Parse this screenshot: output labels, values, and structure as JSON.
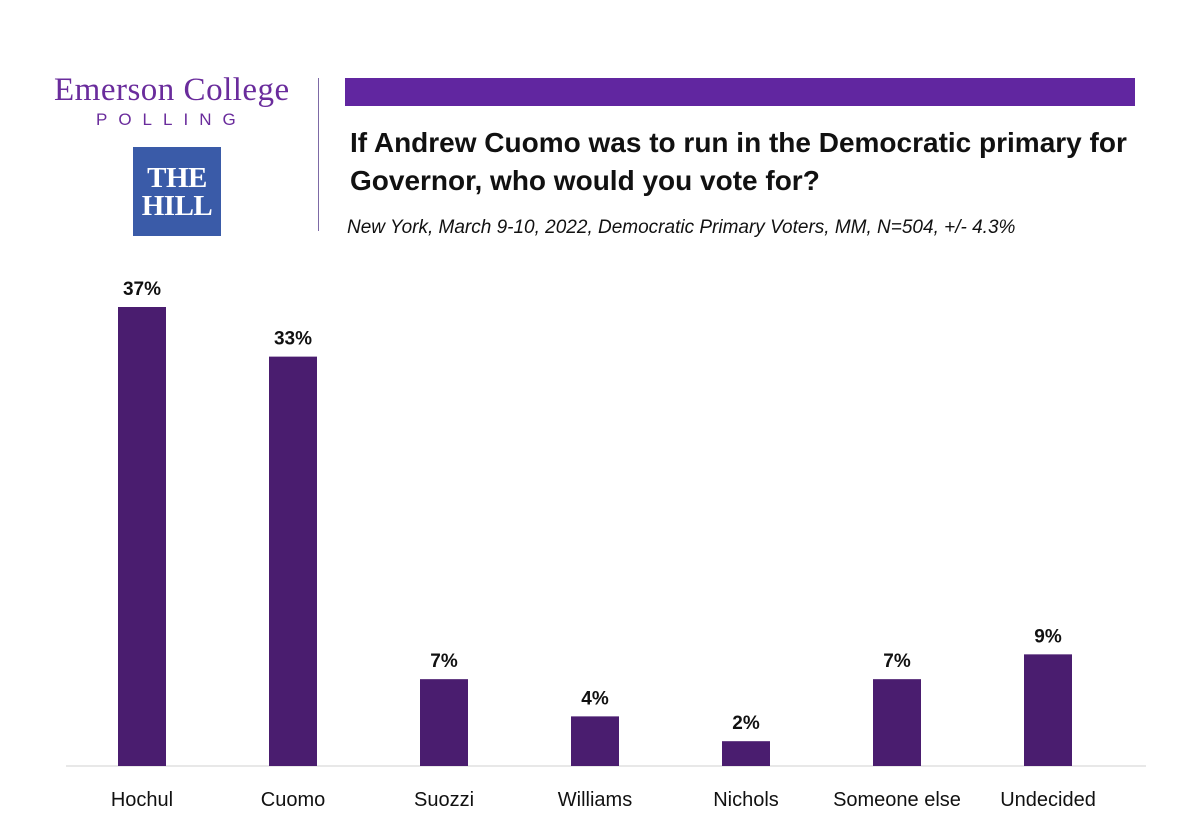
{
  "brand": {
    "emerson": "Emerson College",
    "polling": "POLLING",
    "hill_line1": "THE",
    "hill_line2": "HILL"
  },
  "colors": {
    "bar": "#4a1d6f",
    "accent_bar": "#6126a0",
    "brand_purple": "#6a2c9c",
    "hill_blue": "#3a5ba8"
  },
  "chart_data": {
    "type": "bar",
    "title": "If Andrew Cuomo was to run in the Democratic primary for Governor, who would you vote for?",
    "subtitle": "New York, March 9-10, 2022, Democratic Primary Voters, MM, N=504, +/- 4.3%",
    "categories": [
      "Hochul",
      "Cuomo",
      "Suozzi",
      "Williams",
      "Nichols",
      "Someone else",
      "Undecided"
    ],
    "values": [
      37,
      33,
      7,
      4,
      2,
      7,
      9
    ],
    "value_labels": [
      "37%",
      "33%",
      "7%",
      "4%",
      "2%",
      "7%",
      "9%"
    ],
    "ylim": [
      0,
      37
    ],
    "grid": false,
    "legend": "none"
  }
}
